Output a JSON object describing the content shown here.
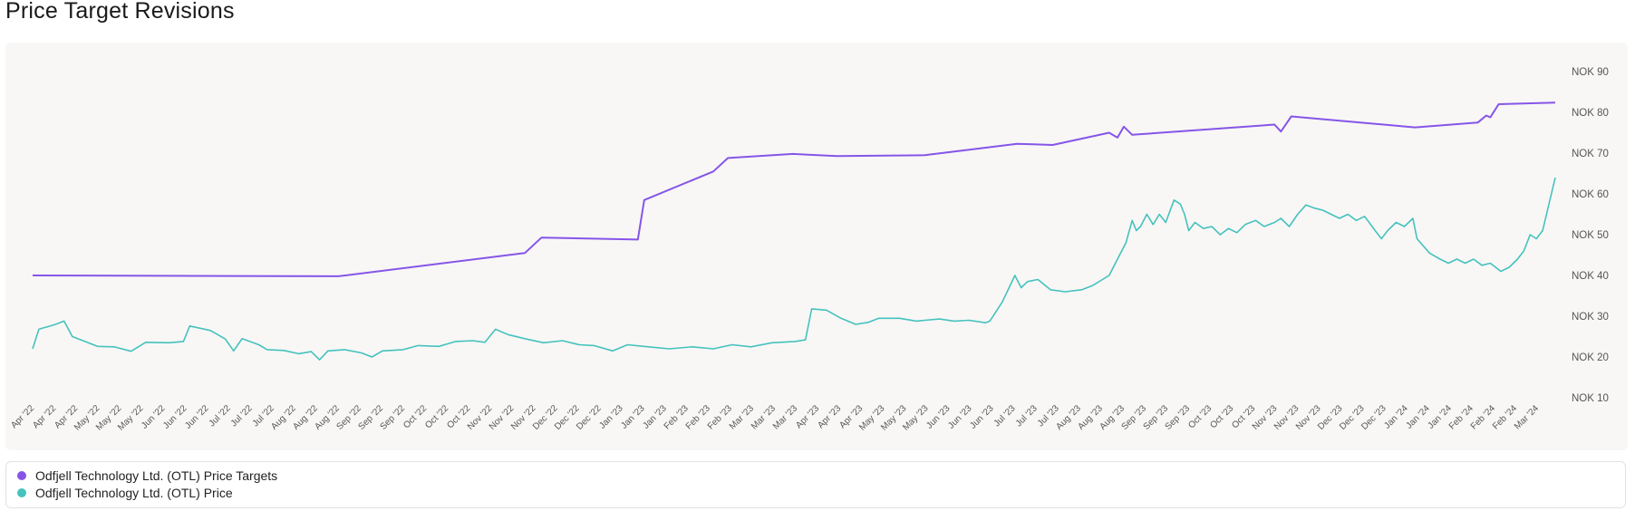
{
  "title": "Price Target Revisions",
  "colors": {
    "targets": "#8655e8",
    "price": "#45c2bd"
  },
  "legend": [
    {
      "label": "Odfjell Technology Ltd. (OTL) Price Targets",
      "color": "#8655e8"
    },
    {
      "label": "Odfjell Technology Ltd. (OTL) Price",
      "color": "#45c2bd"
    }
  ],
  "chart_data": {
    "type": "line",
    "x_axis": "date",
    "xlim": [
      "2022-04-01",
      "2024-03-28"
    ],
    "ylim": [
      10,
      90
    ],
    "y_ticks": [
      90,
      80,
      70,
      60,
      50,
      40,
      30,
      20,
      10
    ],
    "y_tick_format": "NOK",
    "y_axis_position": "right",
    "legend_position": "bottom",
    "grid": false,
    "x_tick_labels": [
      "Apr '22",
      "Apr '22",
      "Apr '22",
      "May '22",
      "May '22",
      "May '22",
      "Jun '22",
      "Jun '22",
      "Jun '22",
      "Jul '22",
      "Jul '22",
      "Jul '22",
      "Aug '22",
      "Aug '22",
      "Aug '22",
      "Sep '22",
      "Sep '22",
      "Sep '22",
      "Oct '22",
      "Oct '22",
      "Oct '22",
      "Nov '22",
      "Nov '22",
      "Nov '22",
      "Dec '22",
      "Dec '22",
      "Dec '22",
      "Jan '23",
      "Jan '23",
      "Jan '23",
      "Feb '23",
      "Feb '23",
      "Feb '23",
      "Mar '23",
      "Mar '23",
      "Mar '23",
      "Apr '23",
      "Apr '23",
      "Apr '23",
      "May '23",
      "May '23",
      "May '23",
      "Jun '23",
      "Jun '23",
      "Jun '23",
      "Jul '23",
      "Jul '23",
      "Jul '23",
      "Aug '23",
      "Aug '23",
      "Aug '23",
      "Sep '23",
      "Sep '23",
      "Sep '23",
      "Oct '23",
      "Oct '23",
      "Oct '23",
      "Nov '23",
      "Nov '23",
      "Nov '23",
      "Dec '23",
      "Dec '23",
      "Dec '23",
      "Jan '24",
      "Jan '24",
      "Jan '24",
      "Feb '24",
      "Feb '24",
      "Feb '24",
      "Mar '24"
    ],
    "series": [
      {
        "name": "Odfjell Technology Ltd. (OTL) Price Targets",
        "points": [
          [
            "2022-04-01",
            40.0
          ],
          [
            "2022-08-25",
            39.8
          ],
          [
            "2022-11-22",
            45.5
          ],
          [
            "2022-11-30",
            49.3
          ],
          [
            "2023-01-15",
            48.8
          ],
          [
            "2023-01-18",
            58.5
          ],
          [
            "2023-02-20",
            65.5
          ],
          [
            "2023-02-27",
            68.8
          ],
          [
            "2023-03-30",
            69.8
          ],
          [
            "2023-04-20",
            69.3
          ],
          [
            "2023-06-01",
            69.5
          ],
          [
            "2023-07-15",
            72.3
          ],
          [
            "2023-08-01",
            72.0
          ],
          [
            "2023-08-28",
            75.0
          ],
          [
            "2023-09-01",
            73.8
          ],
          [
            "2023-09-04",
            76.5
          ],
          [
            "2023-09-08",
            74.5
          ],
          [
            "2023-11-15",
            77.0
          ],
          [
            "2023-11-18",
            75.3
          ],
          [
            "2023-11-23",
            79.0
          ],
          [
            "2024-01-21",
            76.3
          ],
          [
            "2024-02-20",
            77.5
          ],
          [
            "2024-02-24",
            79.2
          ],
          [
            "2024-02-26",
            78.8
          ],
          [
            "2024-03-01",
            82.0
          ],
          [
            "2024-03-28",
            82.4
          ]
        ]
      },
      {
        "name": "Odfjell Technology Ltd. (OTL) Price",
        "points": [
          [
            "2022-04-01",
            22.0
          ],
          [
            "2022-04-04",
            26.8
          ],
          [
            "2022-04-12",
            28.0
          ],
          [
            "2022-04-16",
            28.8
          ],
          [
            "2022-04-20",
            25.0
          ],
          [
            "2022-04-26",
            23.8
          ],
          [
            "2022-05-02",
            22.6
          ],
          [
            "2022-05-10",
            22.5
          ],
          [
            "2022-05-18",
            21.4
          ],
          [
            "2022-05-25",
            23.6
          ],
          [
            "2022-06-05",
            23.5
          ],
          [
            "2022-06-12",
            23.8
          ],
          [
            "2022-06-15",
            27.6
          ],
          [
            "2022-06-25",
            26.5
          ],
          [
            "2022-07-02",
            24.4
          ],
          [
            "2022-07-06",
            21.5
          ],
          [
            "2022-07-10",
            24.5
          ],
          [
            "2022-07-18",
            23.0
          ],
          [
            "2022-07-22",
            21.8
          ],
          [
            "2022-07-30",
            21.6
          ],
          [
            "2022-08-06",
            20.8
          ],
          [
            "2022-08-12",
            21.3
          ],
          [
            "2022-08-16",
            19.3
          ],
          [
            "2022-08-20",
            21.5
          ],
          [
            "2022-08-28",
            21.8
          ],
          [
            "2022-09-05",
            21.0
          ],
          [
            "2022-09-10",
            20.0
          ],
          [
            "2022-09-15",
            21.5
          ],
          [
            "2022-09-25",
            21.8
          ],
          [
            "2022-10-02",
            22.8
          ],
          [
            "2022-10-12",
            22.6
          ],
          [
            "2022-10-20",
            23.8
          ],
          [
            "2022-10-28",
            24.0
          ],
          [
            "2022-11-03",
            23.6
          ],
          [
            "2022-11-08",
            26.8
          ],
          [
            "2022-11-14",
            25.5
          ],
          [
            "2022-11-22",
            24.5
          ],
          [
            "2022-12-01",
            23.5
          ],
          [
            "2022-12-10",
            24.0
          ],
          [
            "2022-12-18",
            23.0
          ],
          [
            "2022-12-25",
            22.8
          ],
          [
            "2023-01-03",
            21.5
          ],
          [
            "2023-01-10",
            23.0
          ],
          [
            "2023-01-20",
            22.5
          ],
          [
            "2023-01-30",
            22.0
          ],
          [
            "2023-02-10",
            22.5
          ],
          [
            "2023-02-20",
            22.0
          ],
          [
            "2023-03-01",
            23.0
          ],
          [
            "2023-03-10",
            22.5
          ],
          [
            "2023-03-20",
            23.5
          ],
          [
            "2023-03-31",
            23.8
          ],
          [
            "2023-04-05",
            24.2
          ],
          [
            "2023-04-08",
            31.8
          ],
          [
            "2023-04-15",
            31.5
          ],
          [
            "2023-04-22",
            29.5
          ],
          [
            "2023-04-29",
            28.0
          ],
          [
            "2023-05-05",
            28.5
          ],
          [
            "2023-05-10",
            29.5
          ],
          [
            "2023-05-20",
            29.5
          ],
          [
            "2023-05-28",
            28.8
          ],
          [
            "2023-06-01",
            29.0
          ],
          [
            "2023-06-08",
            29.3
          ],
          [
            "2023-06-15",
            28.8
          ],
          [
            "2023-06-22",
            29.0
          ],
          [
            "2023-06-30",
            28.4
          ],
          [
            "2023-07-02",
            28.8
          ],
          [
            "2023-07-08",
            33.5
          ],
          [
            "2023-07-14",
            40.0
          ],
          [
            "2023-07-17",
            37.0
          ],
          [
            "2023-07-20",
            38.5
          ],
          [
            "2023-07-25",
            39.0
          ],
          [
            "2023-07-31",
            36.5
          ],
          [
            "2023-08-07",
            36.0
          ],
          [
            "2023-08-15",
            36.5
          ],
          [
            "2023-08-20",
            37.5
          ],
          [
            "2023-08-28",
            40.0
          ],
          [
            "2023-09-02",
            45.0
          ],
          [
            "2023-09-05",
            48.0
          ],
          [
            "2023-09-08",
            53.5
          ],
          [
            "2023-09-10",
            51.0
          ],
          [
            "2023-09-12",
            52.0
          ],
          [
            "2023-09-15",
            55.0
          ],
          [
            "2023-09-18",
            52.5
          ],
          [
            "2023-09-21",
            55.0
          ],
          [
            "2023-09-24",
            53.0
          ],
          [
            "2023-09-28",
            58.5
          ],
          [
            "2023-10-01",
            57.5
          ],
          [
            "2023-10-03",
            55.0
          ],
          [
            "2023-10-05",
            51.0
          ],
          [
            "2023-10-08",
            53.0
          ],
          [
            "2023-10-12",
            51.5
          ],
          [
            "2023-10-16",
            52.0
          ],
          [
            "2023-10-20",
            50.0
          ],
          [
            "2023-10-24",
            51.5
          ],
          [
            "2023-10-28",
            50.5
          ],
          [
            "2023-11-01",
            52.5
          ],
          [
            "2023-11-06",
            53.5
          ],
          [
            "2023-11-10",
            52.0
          ],
          [
            "2023-11-15",
            53.0
          ],
          [
            "2023-11-18",
            54.0
          ],
          [
            "2023-11-22",
            52.0
          ],
          [
            "2023-11-26",
            55.0
          ],
          [
            "2023-11-30",
            57.3
          ],
          [
            "2023-12-04",
            56.5
          ],
          [
            "2023-12-08",
            56.0
          ],
          [
            "2023-12-12",
            55.0
          ],
          [
            "2023-12-16",
            54.0
          ],
          [
            "2023-12-20",
            55.0
          ],
          [
            "2023-12-24",
            53.5
          ],
          [
            "2023-12-28",
            54.5
          ],
          [
            "2024-01-02",
            51.0
          ],
          [
            "2024-01-05",
            49.0
          ],
          [
            "2024-01-08",
            51.0
          ],
          [
            "2024-01-12",
            53.0
          ],
          [
            "2024-01-16",
            52.0
          ],
          [
            "2024-01-20",
            54.0
          ],
          [
            "2024-01-22",
            49.0
          ],
          [
            "2024-01-28",
            45.5
          ],
          [
            "2024-02-02",
            44.0
          ],
          [
            "2024-02-06",
            43.0
          ],
          [
            "2024-02-10",
            44.0
          ],
          [
            "2024-02-14",
            43.0
          ],
          [
            "2024-02-18",
            44.0
          ],
          [
            "2024-02-22",
            42.5
          ],
          [
            "2024-02-26",
            43.0
          ],
          [
            "2024-03-02",
            41.0
          ],
          [
            "2024-03-06",
            42.0
          ],
          [
            "2024-03-10",
            44.0
          ],
          [
            "2024-03-13",
            46.0
          ],
          [
            "2024-03-16",
            50.0
          ],
          [
            "2024-03-19",
            49.0
          ],
          [
            "2024-03-22",
            51.0
          ],
          [
            "2024-03-28",
            64.0
          ]
        ]
      }
    ]
  }
}
